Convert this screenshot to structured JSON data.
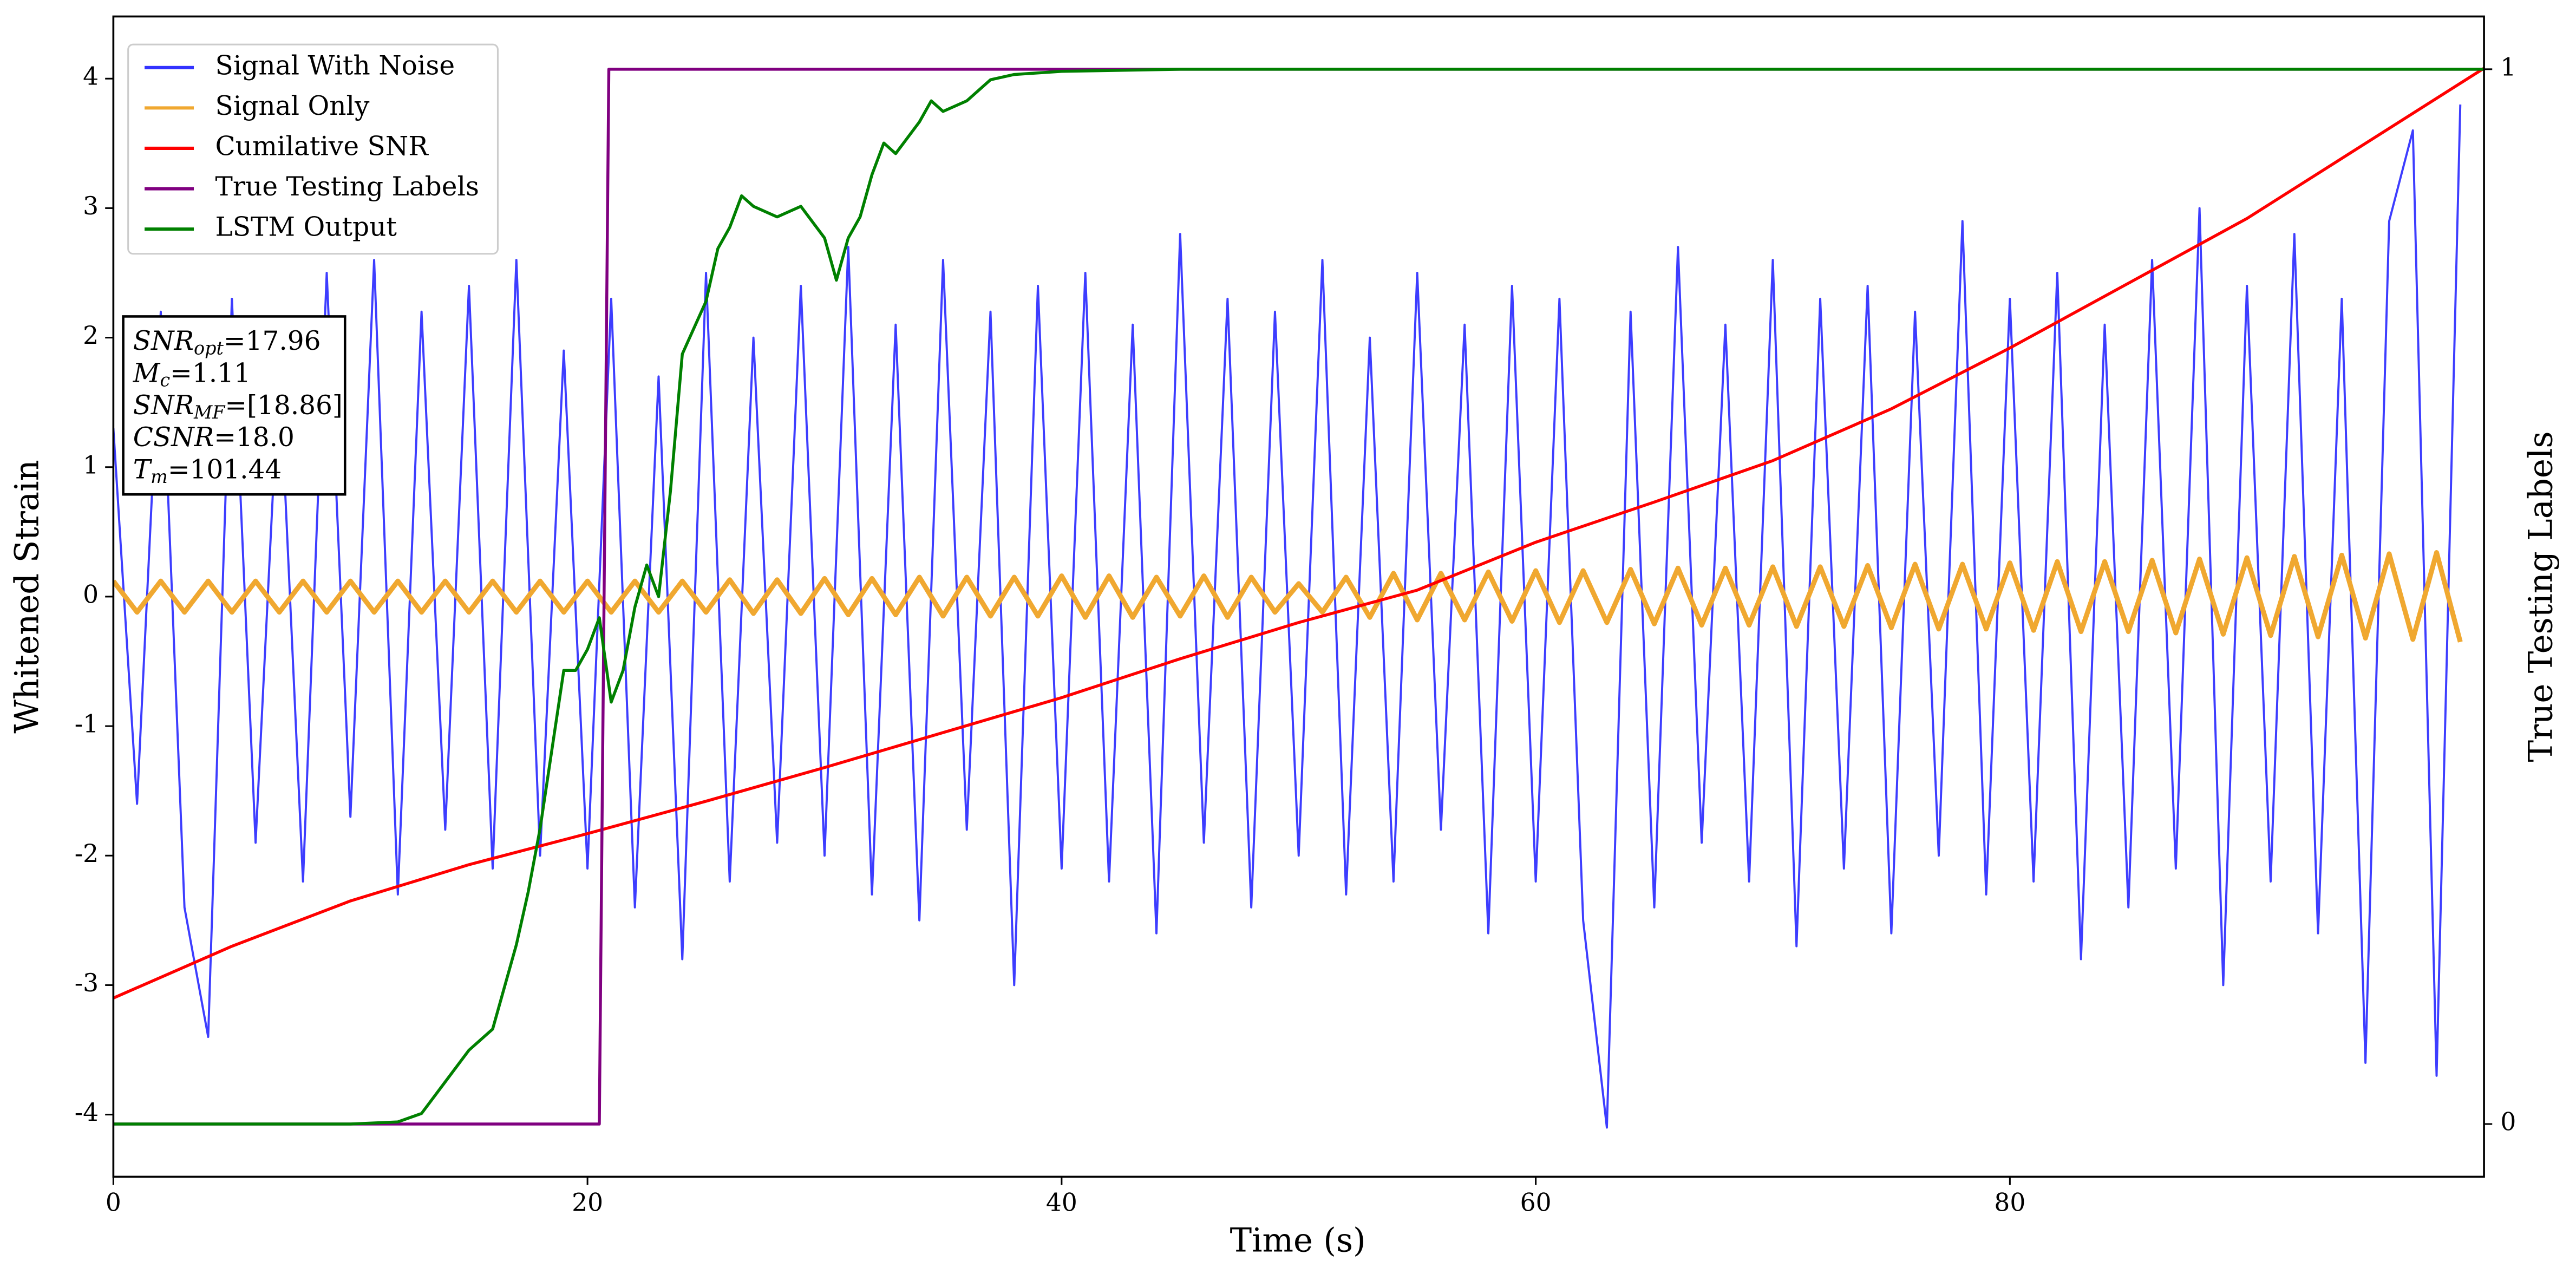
{
  "chart_data": {
    "type": "line",
    "xlabel": "Time (s)",
    "ylabel": "Whitened Strain",
    "y2label": "True Testing Labels",
    "xlim": [
      0,
      100
    ],
    "ylim": [
      -4.48,
      4.48
    ],
    "y2lim": [
      -0.05,
      1.05
    ],
    "xticks": [
      0,
      20,
      40,
      60,
      80
    ],
    "yticks": [
      -4,
      -3,
      -2,
      -1,
      0,
      1,
      2,
      3,
      4
    ],
    "y2ticks": [
      0,
      1
    ],
    "grid": false,
    "legend": "upper left",
    "x": [
      0,
      1,
      2,
      3,
      4,
      5,
      6,
      7,
      8,
      9,
      10,
      11,
      12,
      13,
      14,
      15,
      16,
      17,
      18,
      19,
      20,
      21,
      22,
      23,
      24,
      25,
      26,
      27,
      28,
      29,
      30,
      31,
      32,
      33,
      34,
      35,
      36,
      37,
      38,
      39,
      40,
      41,
      42,
      43,
      44,
      45,
      46,
      47,
      48,
      49,
      50,
      51,
      52,
      53,
      54,
      55,
      56,
      57,
      58,
      59,
      60,
      61,
      62,
      63,
      64,
      65,
      66,
      67,
      68,
      69,
      70,
      71,
      72,
      73,
      74,
      75,
      76,
      77,
      78,
      79,
      80,
      81,
      82,
      83,
      84,
      85,
      86,
      87,
      88,
      89,
      90,
      91,
      92,
      93,
      94,
      95,
      96,
      97,
      98,
      99
    ],
    "series": [
      {
        "name": "Signal With Noise",
        "color": "#3333ff",
        "values": [
          1.3,
          -1.6,
          2.2,
          -2.4,
          -3.4,
          2.3,
          -1.9,
          1.8,
          -2.2,
          2.5,
          -1.7,
          2.6,
          -2.3,
          2.2,
          -1.8,
          2.4,
          -2.1,
          2.6,
          -2.0,
          1.9,
          -2.1,
          2.3,
          -2.4,
          1.7,
          -2.8,
          2.5,
          -2.2,
          2.0,
          -1.9,
          2.4,
          -2.0,
          2.7,
          -2.3,
          2.1,
          -2.5,
          2.6,
          -1.8,
          2.2,
          -3.0,
          2.4,
          -2.1,
          2.5,
          -2.2,
          2.1,
          -2.6,
          2.8,
          -1.9,
          2.3,
          -2.4,
          2.2,
          -2.0,
          2.6,
          -2.3,
          2.0,
          -2.2,
          2.5,
          -1.8,
          2.1,
          -2.6,
          2.4,
          -2.2,
          2.3,
          -2.5,
          -4.1,
          2.2,
          -2.4,
          2.7,
          -1.9,
          2.1,
          -2.2,
          2.6,
          -2.7,
          2.3,
          -2.1,
          2.4,
          -2.6,
          2.2,
          -2.0,
          2.9,
          -2.3,
          2.3,
          -2.2,
          2.5,
          -2.8,
          2.1,
          -2.4,
          2.6,
          -2.1,
          3.0,
          -3.0,
          2.4,
          -2.2,
          2.8,
          -2.6,
          2.3,
          -3.6,
          2.9,
          3.6,
          -3.7,
          3.8
        ]
      },
      {
        "name": "Signal Only",
        "color": "#f0a830",
        "values": [
          0.12,
          -0.12,
          0.12,
          -0.12,
          0.12,
          -0.12,
          0.12,
          -0.12,
          0.12,
          -0.12,
          0.12,
          -0.12,
          0.12,
          -0.12,
          0.12,
          -0.12,
          0.12,
          -0.12,
          0.12,
          -0.12,
          0.12,
          -0.12,
          0.12,
          -0.12,
          0.12,
          -0.12,
          0.13,
          -0.13,
          0.13,
          -0.13,
          0.14,
          -0.14,
          0.14,
          -0.14,
          0.15,
          -0.15,
          0.15,
          -0.15,
          0.15,
          -0.15,
          0.16,
          -0.16,
          0.16,
          -0.16,
          0.15,
          -0.15,
          0.16,
          -0.16,
          0.15,
          -0.12,
          0.1,
          -0.12,
          0.15,
          -0.16,
          0.18,
          -0.18,
          0.18,
          -0.18,
          0.19,
          -0.19,
          0.2,
          -0.2,
          0.2,
          -0.2,
          0.21,
          -0.21,
          0.22,
          -0.22,
          0.22,
          -0.22,
          0.23,
          -0.23,
          0.23,
          -0.23,
          0.24,
          -0.24,
          0.25,
          -0.25,
          0.25,
          -0.25,
          0.26,
          -0.26,
          0.27,
          -0.27,
          0.27,
          -0.27,
          0.28,
          -0.28,
          0.29,
          -0.29,
          0.3,
          -0.3,
          0.31,
          -0.31,
          0.32,
          -0.32,
          0.33,
          -0.33,
          0.34,
          -0.35
        ]
      },
      {
        "name": "Cumilative SNR",
        "color": "#ff0000",
        "x": [
          0,
          5,
          10,
          15,
          20,
          25,
          30,
          35,
          40,
          45,
          50,
          55,
          60,
          65,
          70,
          75,
          80,
          85,
          90,
          95,
          100
        ],
        "values": [
          -3.1,
          -2.7,
          -2.35,
          -2.07,
          -1.83,
          -1.58,
          -1.32,
          -1.05,
          -0.78,
          -0.48,
          -0.2,
          0.05,
          0.42,
          0.73,
          1.05,
          1.45,
          1.92,
          2.42,
          2.92,
          3.5,
          4.08
        ]
      },
      {
        "name": "True Testing Labels",
        "color": "#800080",
        "axis": "y2",
        "x": [
          0,
          20.5,
          20.9,
          100
        ],
        "values": [
          0,
          0,
          1,
          1
        ]
      },
      {
        "name": "LSTM Output",
        "color": "#008000",
        "axis": "y2",
        "x": [
          0,
          10,
          12,
          13,
          14,
          15,
          16,
          17,
          17.5,
          18,
          19,
          19.5,
          20,
          20.5,
          21,
          21.5,
          22,
          22.5,
          23,
          23.5,
          24,
          25,
          25.5,
          26,
          26.5,
          27,
          28,
          29,
          30,
          30.5,
          31,
          31.5,
          32,
          32.5,
          33,
          34,
          34.5,
          35,
          36,
          37,
          38,
          40,
          45,
          100
        ],
        "values": [
          0,
          0,
          0.002,
          0.01,
          0.04,
          0.07,
          0.09,
          0.17,
          0.22,
          0.28,
          0.43,
          0.43,
          0.45,
          0.48,
          0.4,
          0.43,
          0.49,
          0.53,
          0.5,
          0.6,
          0.73,
          0.78,
          0.83,
          0.85,
          0.88,
          0.87,
          0.86,
          0.87,
          0.84,
          0.8,
          0.84,
          0.86,
          0.9,
          0.93,
          0.92,
          0.95,
          0.97,
          0.96,
          0.97,
          0.99,
          0.995,
          0.998,
          1,
          1
        ]
      }
    ],
    "annotations": [
      {
        "text": "SNR",
        "sub": "opt",
        "rest": "=17.96"
      },
      {
        "text": "M",
        "sub": "c",
        "rest": "=1.11"
      },
      {
        "text": "SNR",
        "sub": "MF",
        "rest": "=[18.86]"
      },
      {
        "text": "CSNR",
        "rest": "=18.0"
      },
      {
        "text": "T",
        "sub": "m",
        "rest": "=101.44"
      }
    ]
  }
}
